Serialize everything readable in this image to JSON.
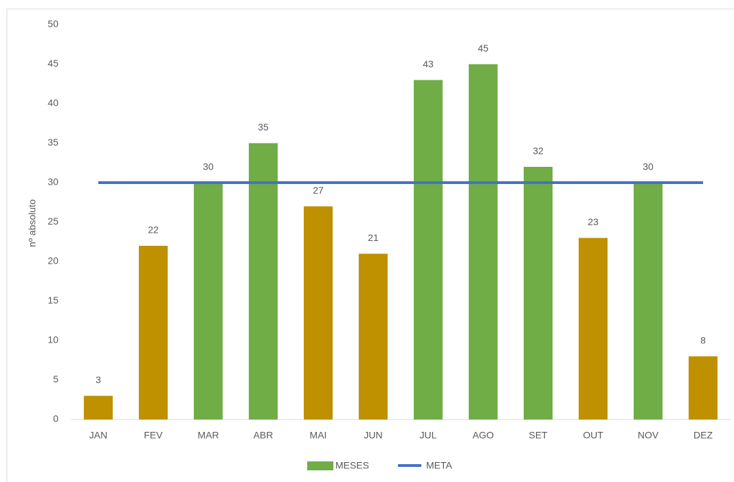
{
  "chart_data": {
    "type": "bar",
    "categories": [
      "JAN",
      "FEV",
      "MAR",
      "ABR",
      "MAI",
      "JUN",
      "JUL",
      "AGO",
      "SET",
      "OUT",
      "NOV",
      "DEZ"
    ],
    "series": [
      {
        "name": "MESES",
        "type": "bar",
        "color": "#70ad47",
        "colors": [
          "#bf9000",
          "#bf9000",
          "#70ad47",
          "#70ad47",
          "#bf9000",
          "#bf9000",
          "#70ad47",
          "#70ad47",
          "#70ad47",
          "#bf9000",
          "#70ad47",
          "#bf9000"
        ],
        "values": [
          3,
          22,
          30,
          35,
          27,
          21,
          43,
          45,
          32,
          23,
          30,
          8
        ]
      },
      {
        "name": "META",
        "type": "line",
        "color": "#4472c4",
        "values": [
          30,
          30,
          30,
          30,
          30,
          30,
          30,
          30,
          30,
          30,
          30,
          30
        ]
      }
    ],
    "y_label": "nº absoluto",
    "ylim": [
      0,
      50
    ],
    "yticks": [
      0,
      5,
      10,
      15,
      20,
      25,
      30,
      35,
      40,
      45,
      50
    ],
    "legend": "bottom"
  }
}
